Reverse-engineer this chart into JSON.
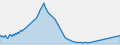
{
  "line_color": "#1878c0",
  "fill_color": "#60aadd",
  "background_color": "#f0f0f0",
  "linewidth": 0.8,
  "fill_alpha": 0.35,
  "values": [
    820,
    810,
    815,
    800,
    810,
    820,
    800,
    790,
    810,
    830,
    820,
    810,
    830,
    820,
    840,
    830,
    850,
    840,
    860,
    870,
    860,
    875,
    880,
    890,
    900,
    910,
    920,
    930,
    940,
    950,
    960,
    970,
    980,
    990,
    1010,
    1030,
    1060,
    1080,
    1100,
    1120,
    1140,
    1100,
    1080,
    1060,
    1040,
    1030,
    1020,
    1010,
    1000,
    990,
    980,
    960,
    940,
    920,
    900,
    880,
    860,
    840,
    820,
    800,
    790,
    785,
    780,
    775,
    770,
    765,
    760,
    758,
    755,
    752,
    750,
    748,
    750,
    752,
    748,
    745,
    748,
    750,
    752,
    748,
    745,
    748,
    750,
    752,
    755,
    758,
    760,
    762,
    765,
    768,
    770,
    772,
    775,
    778,
    780,
    782,
    785,
    788,
    790,
    793,
    795,
    798,
    800,
    802,
    805,
    808,
    810,
    812,
    815,
    818
  ]
}
